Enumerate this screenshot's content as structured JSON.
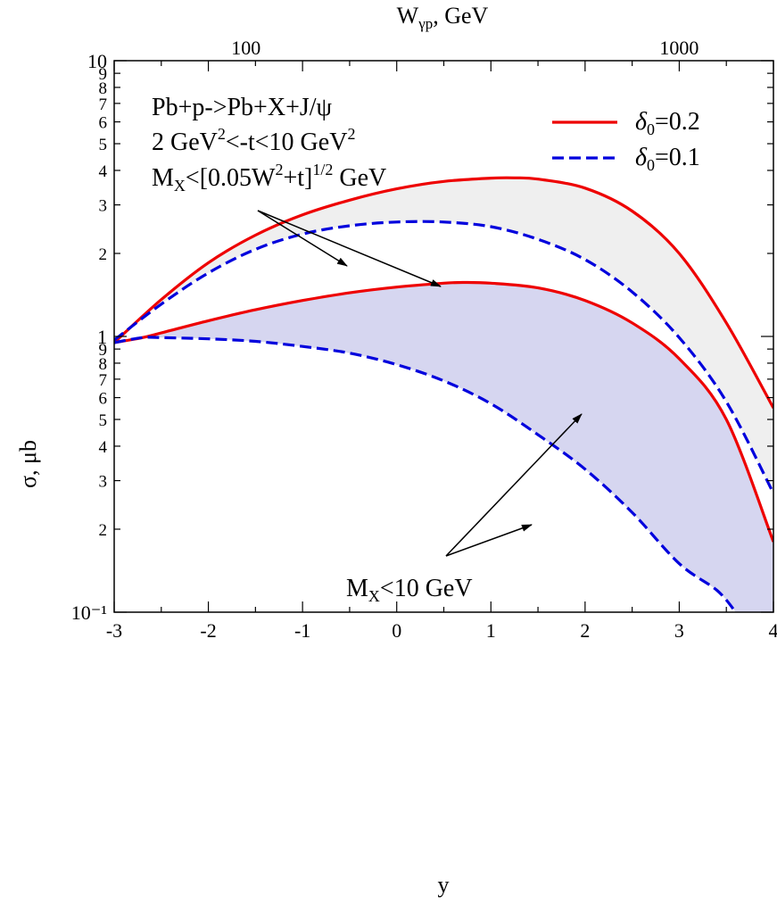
{
  "chart_data": {
    "type": "line",
    "x_axis": {
      "label": "y",
      "range": [
        -3,
        4
      ],
      "ticks": [
        "-3",
        "-2",
        "-1",
        "0",
        "1",
        "2",
        "3",
        "4"
      ]
    },
    "top_axis": {
      "label_main": "W",
      "label_sub": "γp",
      "label_rest": ", GeV",
      "ticks": [
        {
          "label": "100",
          "y": -1.6
        },
        {
          "label": "1000",
          "y": 3.0
        }
      ]
    },
    "y_axis": {
      "label": "σ, μb",
      "scale": "log",
      "range": [
        0.1,
        10
      ],
      "major_ticks": [
        {
          "label": "10⁻¹",
          "value": 0.1
        },
        {
          "label": "1",
          "value": 1
        },
        {
          "label": "10",
          "value": 10
        }
      ],
      "minor_ticks": [
        {
          "label": "2",
          "value": 0.2
        },
        {
          "label": "3",
          "value": 0.3
        },
        {
          "label": "4",
          "value": 0.4
        },
        {
          "label": "5",
          "value": 0.5
        },
        {
          "label": "6",
          "value": 0.6
        },
        {
          "label": "7",
          "value": 0.7
        },
        {
          "label": "8",
          "value": 0.8
        },
        {
          "label": "9",
          "value": 0.9
        },
        {
          "label": "2",
          "value": 2
        },
        {
          "label": "3",
          "value": 3
        },
        {
          "label": "4",
          "value": 4
        },
        {
          "label": "5",
          "value": 5
        },
        {
          "label": "6",
          "value": 6
        },
        {
          "label": "7",
          "value": 7
        },
        {
          "label": "8",
          "value": 8
        },
        {
          "label": "9",
          "value": 9
        }
      ]
    },
    "legend": {
      "placement": "top-right",
      "entries": [
        {
          "symbol": "δ",
          "sub": "0",
          "value": "=0.2",
          "style": "solid",
          "color": "#ee0000"
        },
        {
          "symbol": "δ",
          "sub": "0",
          "value": "=0.1",
          "style": "dashed",
          "color": "#0000dd"
        }
      ]
    },
    "annotations": {
      "upper": {
        "line1": "Pb+p->Pb+X+J/ψ",
        "line2_a": "2 GeV",
        "line2_sup1": "2",
        "line2_b": "<-t<10 GeV",
        "line2_sup2": "2",
        "line3_a": "M",
        "line3_sub": "X",
        "line3_b": "<[0.05W",
        "line3_sup1": "2",
        "line3_c": "+t]",
        "line3_sup2": "1/2",
        "line3_d": " GeV"
      },
      "lower": {
        "text_a": "M",
        "text_sub": "X",
        "text_b": "<10 GeV"
      }
    },
    "series": [
      {
        "group": "upper",
        "name": "δ0=0.2",
        "style": "solid",
        "color": "#ee0000",
        "x": [
          -3.0,
          -2.5,
          -2.0,
          -1.5,
          -1.0,
          -0.5,
          0.0,
          0.5,
          1.0,
          1.25,
          1.5,
          2.0,
          2.5,
          3.0,
          3.5,
          4.0
        ],
        "y": [
          0.95,
          1.36,
          1.85,
          2.33,
          2.76,
          3.12,
          3.43,
          3.65,
          3.75,
          3.76,
          3.72,
          3.45,
          2.85,
          2.0,
          1.12,
          0.55
        ]
      },
      {
        "group": "upper",
        "name": "δ0=0.1",
        "style": "dashed",
        "color": "#0000dd",
        "x": [
          -3.0,
          -2.5,
          -2.0,
          -1.5,
          -1.0,
          -0.5,
          0.0,
          0.5,
          1.0,
          1.5,
          2.0,
          2.5,
          3.0,
          3.5,
          4.0
        ],
        "y": [
          0.97,
          1.31,
          1.7,
          2.07,
          2.35,
          2.52,
          2.6,
          2.6,
          2.5,
          2.25,
          1.9,
          1.45,
          0.99,
          0.58,
          0.27
        ]
      },
      {
        "group": "lower",
        "name": "δ0=0.2",
        "style": "solid",
        "color": "#ee0000",
        "x": [
          -3.0,
          -2.7,
          -2.5,
          -2.0,
          -1.5,
          -1.0,
          -0.5,
          0.0,
          0.5,
          0.7,
          1.0,
          1.5,
          2.0,
          2.5,
          3.0,
          3.5,
          4.0
        ],
        "y": [
          0.95,
          0.99,
          1.03,
          1.14,
          1.25,
          1.35,
          1.44,
          1.51,
          1.56,
          1.57,
          1.56,
          1.5,
          1.35,
          1.12,
          0.83,
          0.5,
          0.18
        ]
      },
      {
        "group": "lower",
        "name": "δ0=0.1",
        "style": "dashed",
        "color": "#0000dd",
        "x": [
          -3.0,
          -2.7,
          -2.5,
          -2.0,
          -1.5,
          -1.0,
          -0.5,
          0.0,
          0.5,
          1.0,
          1.5,
          2.0,
          2.5,
          3.0,
          3.4,
          3.6
        ],
        "y": [
          0.95,
          0.99,
          0.99,
          0.98,
          0.96,
          0.92,
          0.87,
          0.79,
          0.69,
          0.57,
          0.44,
          0.33,
          0.23,
          0.15,
          0.12,
          0.1
        ]
      }
    ],
    "bands": [
      {
        "group": "upper",
        "fill": "#efefef"
      },
      {
        "group": "lower",
        "fill": "#d6d6f0"
      }
    ],
    "grid": false
  }
}
